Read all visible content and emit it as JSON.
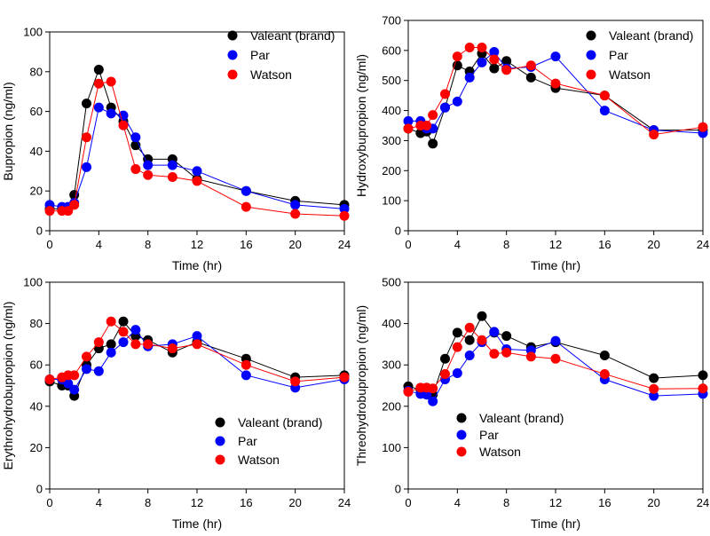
{
  "colors": {
    "Valeant (brand)": "#000000",
    "Par": "#0000ff",
    "Watson": "#ff0000"
  },
  "chart_data": [
    {
      "type": "line",
      "panel": "top-left",
      "xlabel": "Time (hr)",
      "ylabel": "Bupropion (ng/ml)",
      "xlim": [
        0,
        24
      ],
      "ylim": [
        0,
        100
      ],
      "xticks": [
        0,
        4,
        8,
        12,
        16,
        20,
        24
      ],
      "yticks": [
        0,
        20,
        40,
        60,
        80,
        100
      ],
      "legend_position": "top-right",
      "x": [
        0,
        1,
        1.5,
        2,
        3,
        4,
        5,
        6,
        7,
        8,
        10,
        12,
        16,
        20,
        24
      ],
      "series": [
        {
          "name": "Valeant (brand)",
          "values": [
            11,
            11,
            11,
            18,
            64,
            81,
            62,
            55,
            43,
            36,
            36,
            26,
            20,
            15,
            13
          ]
        },
        {
          "name": "Par",
          "values": [
            13,
            12,
            12,
            14,
            32,
            62,
            59,
            58,
            47,
            33,
            33,
            30,
            20,
            13,
            11
          ]
        },
        {
          "name": "Watson",
          "values": [
            10,
            10,
            10,
            13,
            47,
            74,
            75,
            53,
            31,
            28,
            27,
            25,
            12,
            8.5,
            7.5
          ]
        }
      ]
    },
    {
      "type": "line",
      "panel": "top-right",
      "xlabel": "Time (hr)",
      "ylabel": "Hydroxybupropion (ng/ml)",
      "xlim": [
        0,
        24
      ],
      "ylim": [
        0,
        700
      ],
      "xticks": [
        0,
        4,
        8,
        12,
        16,
        20,
        24
      ],
      "yticks": [
        0,
        100,
        200,
        300,
        400,
        500,
        600,
        700
      ],
      "legend_position": "top-right",
      "x": [
        0,
        1,
        1.5,
        2,
        3,
        4,
        5,
        6,
        7,
        8,
        10,
        12,
        16,
        20,
        24
      ],
      "series": [
        {
          "name": "Valeant (brand)",
          "values": [
            340,
            325,
            330,
            290,
            410,
            550,
            530,
            590,
            540,
            565,
            510,
            475,
            450,
            335,
            335
          ]
        },
        {
          "name": "Par",
          "values": [
            365,
            365,
            340,
            340,
            410,
            430,
            510,
            560,
            595,
            540,
            545,
            580,
            400,
            335,
            325
          ]
        },
        {
          "name": "Watson",
          "values": [
            340,
            350,
            350,
            385,
            455,
            580,
            610,
            610,
            570,
            535,
            550,
            490,
            450,
            320,
            345
          ]
        }
      ]
    },
    {
      "type": "line",
      "panel": "bottom-left",
      "xlabel": "Time (hr)",
      "ylabel": "Erythrohydrobupropion (ng/ml)",
      "xlim": [
        0,
        24
      ],
      "ylim": [
        0,
        100
      ],
      "xticks": [
        0,
        4,
        8,
        12,
        16,
        20,
        24
      ],
      "yticks": [
        0,
        20,
        40,
        60,
        80,
        100
      ],
      "legend_position": "bottom-right",
      "x": [
        0,
        1,
        1.5,
        2,
        3,
        4,
        5,
        6,
        7,
        8,
        10,
        12,
        16,
        20,
        24
      ],
      "series": [
        {
          "name": "Valeant (brand)",
          "values": [
            52,
            50,
            50,
            45,
            60,
            68,
            70,
            81,
            74,
            72,
            66,
            71,
            63,
            54,
            55
          ]
        },
        {
          "name": "Par",
          "values": [
            53,
            53,
            51,
            48,
            58,
            57,
            66,
            71,
            77,
            69,
            70,
            74,
            55,
            49,
            53
          ]
        },
        {
          "name": "Watson",
          "values": [
            53,
            54,
            55,
            55,
            64,
            71,
            81,
            76,
            70,
            70,
            68,
            70,
            60,
            52,
            54
          ]
        }
      ]
    },
    {
      "type": "line",
      "panel": "bottom-right",
      "xlabel": "Time (hr)",
      "ylabel": "Threohydrobupropion (ng/ml)",
      "xlim": [
        0,
        24
      ],
      "ylim": [
        0,
        500
      ],
      "xticks": [
        0,
        4,
        8,
        12,
        16,
        20,
        24
      ],
      "yticks": [
        0,
        100,
        200,
        300,
        400,
        500
      ],
      "legend_position": "bottom-center",
      "x": [
        0,
        1,
        1.5,
        2,
        3,
        4,
        5,
        6,
        7,
        8,
        10,
        12,
        16,
        20,
        24
      ],
      "series": [
        {
          "name": "Valeant (brand)",
          "values": [
            248,
            240,
            245,
            228,
            315,
            378,
            360,
            418,
            378,
            370,
            343,
            355,
            323,
            268,
            275
          ]
        },
        {
          "name": "Par",
          "values": [
            237,
            230,
            228,
            212,
            265,
            280,
            323,
            355,
            380,
            338,
            335,
            358,
            265,
            225,
            230
          ]
        },
        {
          "name": "Watson",
          "values": [
            235,
            245,
            245,
            243,
            278,
            343,
            390,
            360,
            327,
            330,
            320,
            315,
            278,
            242,
            243
          ]
        }
      ]
    }
  ]
}
